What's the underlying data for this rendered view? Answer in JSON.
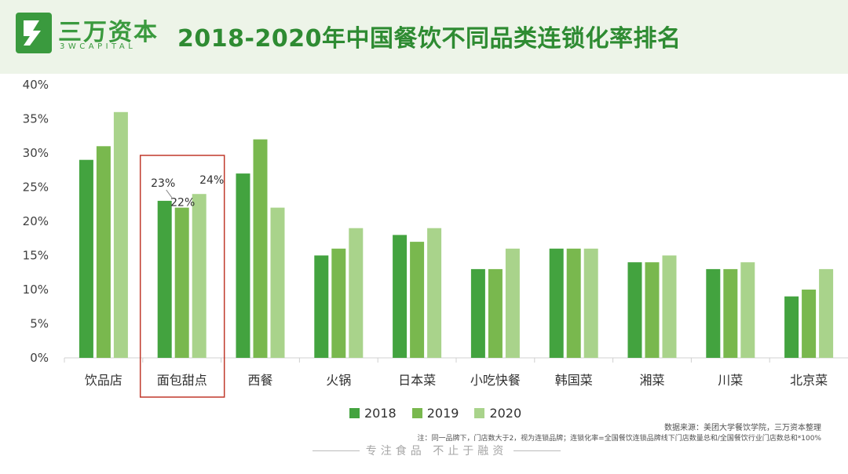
{
  "header": {
    "logo_cn": "三万资本",
    "logo_en": "3WCAPITAL",
    "title": "2018-2020年中国餐饮不同品类连锁化率排名"
  },
  "colors": {
    "s2018": "#43a33f",
    "s2019": "#79b84e",
    "s2020": "#a9d38b",
    "highlight": "#c0392b",
    "brand": "#3a9a3e"
  },
  "chart_data": {
    "type": "bar",
    "title": "2018-2020年中国餐饮不同品类连锁化率排名",
    "categories": [
      "饮品店",
      "面包甜点",
      "西餐",
      "火锅",
      "日本菜",
      "小吃快餐",
      "韩国菜",
      "湘菜",
      "川菜",
      "北京菜"
    ],
    "series": [
      {
        "name": "2018",
        "values": [
          29,
          23,
          27,
          15,
          18,
          13,
          16,
          14,
          13,
          9
        ]
      },
      {
        "name": "2019",
        "values": [
          31,
          22,
          32,
          16,
          17,
          13,
          16,
          14,
          13,
          10
        ]
      },
      {
        "name": "2020",
        "values": [
          36,
          24,
          22,
          19,
          19,
          16,
          16,
          15,
          14,
          13
        ]
      }
    ],
    "yticks": [
      "0%",
      "5%",
      "10%",
      "15%",
      "20%",
      "25%",
      "30%",
      "35%",
      "40%"
    ],
    "ylim": [
      0,
      40
    ],
    "data_labels": {
      "category": "面包甜点",
      "labels": [
        "23%",
        "22%",
        "24%"
      ]
    },
    "highlighted_category": "面包甜点",
    "legend": [
      "2018",
      "2019",
      "2020"
    ],
    "legend_position": "bottom-center",
    "xlabel": "",
    "ylabel": ""
  },
  "footer": {
    "source": "数据来源：美团大学餐饮学院，三万资本整理",
    "note": "注：同一品牌下，门店数大于2，视为连锁品牌；连锁化率=全国餐饮连锁品牌线下门店数量总和/全国餐饮行业门店数总和*100%",
    "slogan": "专注食品 不止于融资"
  }
}
